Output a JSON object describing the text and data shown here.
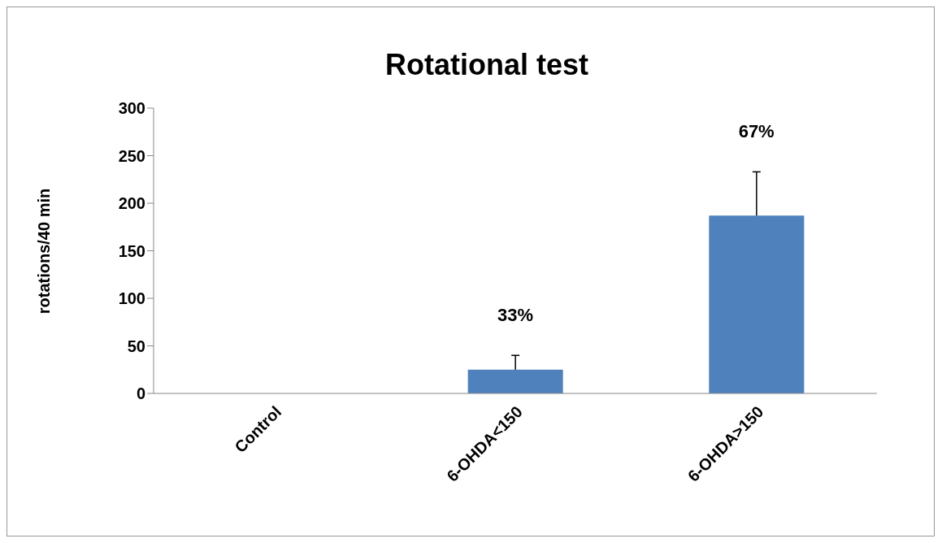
{
  "chart_data": {
    "type": "bar",
    "title": "Rotational test",
    "ylabel": "rotations/40 min",
    "categories": [
      "Control",
      "6-OHDA<150",
      "6-OHDA>150"
    ],
    "values": [
      0,
      25,
      187
    ],
    "errors": [
      null,
      [
        25,
        40
      ],
      [
        187,
        233
      ]
    ],
    "color": "#4f81bd",
    "ylim": [
      0,
      300
    ],
    "yticks": [
      0,
      50,
      100,
      150,
      200,
      250,
      300
    ],
    "grid": false,
    "legend": false,
    "annotations": [
      {
        "text": "33%",
        "x": "6-OHDA<150",
        "y": 40
      },
      {
        "text": "67%",
        "x": "6-OHDA>150",
        "y": 233
      }
    ]
  }
}
